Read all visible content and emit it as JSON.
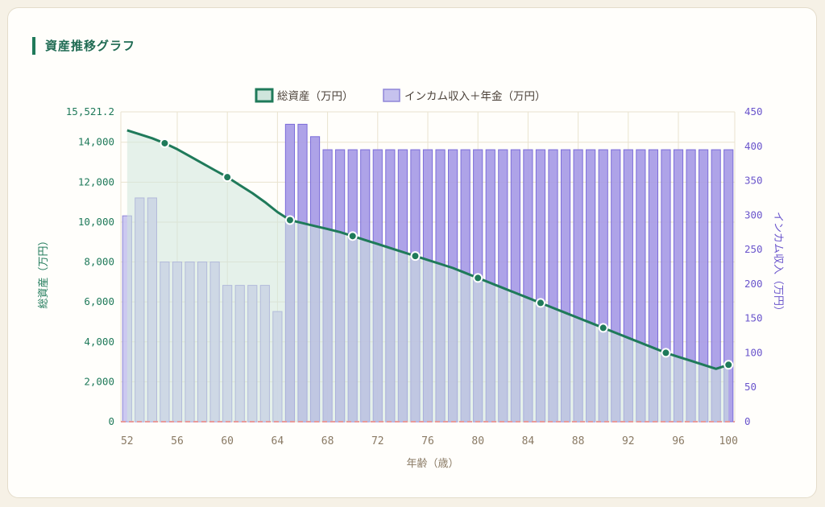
{
  "card": {
    "title": "資産推移グラフ"
  },
  "colors": {
    "asset_line": "#1f7a5a",
    "asset_fill": "#cfe5dc",
    "income_before": "#c6c2ee",
    "income_before_border": "#8f86d8",
    "income_after": "#a79be6",
    "income_after_border": "#7b6cd9",
    "grid": "#e9e3cf",
    "left_axis_text": "#1f7a5a",
    "right_axis_text": "#6a55cc",
    "x_axis_text": "#8a7a64",
    "zero_line": "#e89a9a"
  },
  "chart_data": {
    "type": "bar",
    "x": [
      52,
      53,
      54,
      55,
      56,
      57,
      58,
      59,
      60,
      61,
      62,
      63,
      64,
      65,
      66,
      67,
      68,
      69,
      70,
      71,
      72,
      73,
      74,
      75,
      76,
      77,
      78,
      79,
      80,
      81,
      82,
      83,
      84,
      85,
      86,
      87,
      88,
      89,
      90,
      91,
      92,
      93,
      94,
      95,
      96,
      97,
      98,
      99,
      100
    ],
    "x_ticks": [
      "52",
      "56",
      "60",
      "64",
      "68",
      "72",
      "76",
      "80",
      "84",
      "88",
      "92",
      "96",
      "100"
    ],
    "xlabel": "年齢（歳）",
    "legend": [
      "総資産（万円）",
      "インカム収入＋年金（万円）"
    ],
    "left_axis": {
      "label": "総資産（万円）",
      "ticks": [
        "0",
        "2,000",
        "4,000",
        "6,000",
        "8,000",
        "10,000",
        "12,000",
        "14,000",
        "15,521.2"
      ],
      "tick_values": [
        0,
        2000,
        4000,
        6000,
        8000,
        10000,
        12000,
        14000,
        15521.2
      ],
      "max": 15521.2
    },
    "right_axis": {
      "label": "インカム収入（万円）",
      "ticks": [
        "0",
        "50",
        "100",
        "150",
        "200",
        "250",
        "300",
        "350",
        "400",
        "450"
      ],
      "tick_values": [
        0,
        50,
        100,
        150,
        200,
        250,
        300,
        350,
        400,
        450
      ],
      "max": 450
    },
    "series": [
      {
        "name": "総資産（万円）",
        "type": "area-line",
        "axis": "left",
        "values": [
          14600,
          14400,
          14200,
          13950,
          13650,
          13300,
          12950,
          12600,
          12250,
          11850,
          11450,
          11000,
          10500,
          10100,
          9950,
          9800,
          9650,
          9500,
          9300,
          9100,
          8900,
          8700,
          8500,
          8300,
          8100,
          7900,
          7700,
          7450,
          7200,
          6950,
          6700,
          6450,
          6200,
          5950,
          5700,
          5450,
          5200,
          4950,
          4700,
          4450,
          4200,
          3950,
          3700,
          3450,
          3250,
          3050,
          2850,
          2650,
          2850
        ],
        "markers_at": [
          55,
          60,
          65,
          70,
          75,
          80,
          85,
          90,
          95,
          100
        ]
      },
      {
        "name": "インカム収入＋年金（万円）",
        "type": "bar",
        "axis": "right",
        "values": [
          299,
          325,
          325,
          232,
          232,
          232,
          232,
          232,
          198,
          198,
          198,
          198,
          160,
          432,
          432,
          414,
          395,
          395,
          395,
          395,
          395,
          395,
          395,
          395,
          395,
          395,
          395,
          395,
          395,
          395,
          395,
          395,
          395,
          395,
          395,
          395,
          395,
          395,
          395,
          395,
          395,
          395,
          395,
          395,
          395,
          395,
          395,
          395,
          395
        ]
      }
    ],
    "grid": true,
    "legend_position": "top-center"
  }
}
